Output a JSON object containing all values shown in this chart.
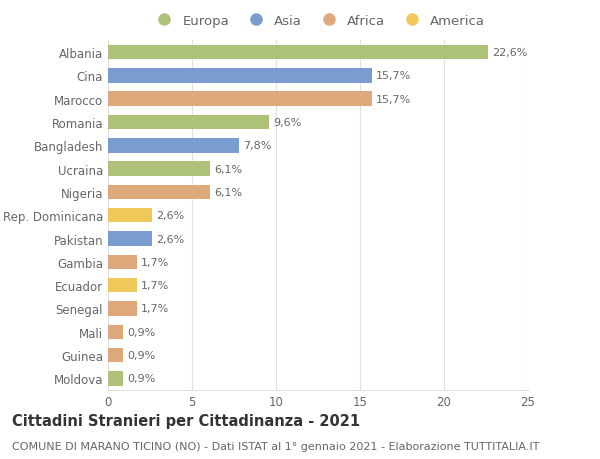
{
  "countries": [
    "Albania",
    "Cina",
    "Marocco",
    "Romania",
    "Bangladesh",
    "Ucraina",
    "Nigeria",
    "Rep. Dominicana",
    "Pakistan",
    "Gambia",
    "Ecuador",
    "Senegal",
    "Mali",
    "Guinea",
    "Moldova"
  ],
  "values": [
    22.6,
    15.7,
    15.7,
    9.6,
    7.8,
    6.1,
    6.1,
    2.6,
    2.6,
    1.7,
    1.7,
    1.7,
    0.9,
    0.9,
    0.9
  ],
  "labels": [
    "22,6%",
    "15,7%",
    "15,7%",
    "9,6%",
    "7,8%",
    "6,1%",
    "6,1%",
    "2,6%",
    "2,6%",
    "1,7%",
    "1,7%",
    "1,7%",
    "0,9%",
    "0,9%",
    "0,9%"
  ],
  "continents": [
    "Europa",
    "Asia",
    "Africa",
    "Europa",
    "Asia",
    "Europa",
    "Africa",
    "America",
    "Asia",
    "Africa",
    "America",
    "Africa",
    "Africa",
    "Africa",
    "Europa"
  ],
  "colors": {
    "Europa": "#adc178",
    "Asia": "#7b9cce",
    "Africa": "#dfa87a",
    "America": "#f0c85a"
  },
  "title": "Cittadini Stranieri per Cittadinanza - 2021",
  "subtitle": "COMUNE DI MARANO TICINO (NO) - Dati ISTAT al 1° gennaio 2021 - Elaborazione TUTTITALIA.IT",
  "xlim": [
    0,
    25
  ],
  "xticks": [
    0,
    5,
    10,
    15,
    20,
    25
  ],
  "background_color": "#ffffff",
  "grid_color": "#e0e0e0",
  "bar_height": 0.62,
  "title_fontsize": 10.5,
  "subtitle_fontsize": 8,
  "label_fontsize": 8,
  "tick_fontsize": 8.5,
  "legend_fontsize": 9.5,
  "text_color": "#666666"
}
